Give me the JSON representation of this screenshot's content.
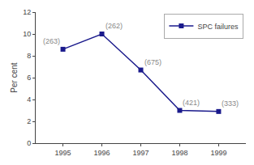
{
  "chart_data": {
    "type": "line",
    "x": [
      1995,
      1996,
      1997,
      1998,
      1999
    ],
    "series": [
      {
        "name": "SPC failures",
        "color": "#1a1a8c",
        "values": [
          8.6,
          10.0,
          6.7,
          3.0,
          2.9
        ],
        "marker": "square",
        "line_style": "solid"
      }
    ],
    "annotations": [
      "(263)",
      "(262)",
      "(675)",
      "(421)",
      "(333)"
    ],
    "ylabel": "Per cent",
    "xlim": [
      1994.3,
      1999.7
    ],
    "xticks": [
      1995,
      1996,
      1997,
      1998,
      1999
    ],
    "ylim": [
      0,
      12
    ],
    "yticks": [
      0,
      2,
      4,
      6,
      8,
      10,
      12
    ],
    "grid": false,
    "legend": "upper right"
  }
}
